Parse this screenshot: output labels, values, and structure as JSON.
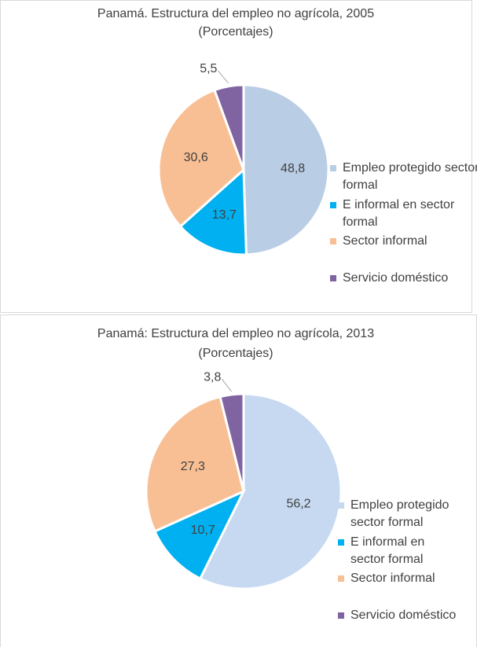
{
  "chart_data": [
    {
      "type": "pie",
      "title": "Panamá. Estructura del empleo no agrícola, 2005",
      "subtitle": "(Porcentajes)",
      "categories": [
        "Empleo protegido sector formal",
        "E informal en sector formal",
        "Sector informal",
        "Servicio doméstico"
      ],
      "values": [
        48.8,
        13.7,
        30.6,
        5.5
      ],
      "value_labels": [
        "48,8",
        "13,7",
        "30,6",
        "5,5"
      ],
      "colors": [
        "#b9cde5",
        "#00b0f0",
        "#f9bf94",
        "#8064a2"
      ],
      "legend": "right"
    },
    {
      "type": "pie",
      "title": "Panamá: Estructura del empleo no agrícola, 2013",
      "subtitle": "(Porcentajes)",
      "categories": [
        "Empleo protegido sector formal",
        "E informal en sector formal",
        "Sector informal",
        "Servicio doméstico"
      ],
      "values": [
        56.2,
        10.7,
        27.3,
        3.8
      ],
      "value_labels": [
        "56,2",
        "10,7",
        "27,3",
        "3,8"
      ],
      "colors": [
        "#c6d9f1",
        "#00b0f0",
        "#f9bf94",
        "#8064a2"
      ],
      "legend": "right"
    }
  ]
}
